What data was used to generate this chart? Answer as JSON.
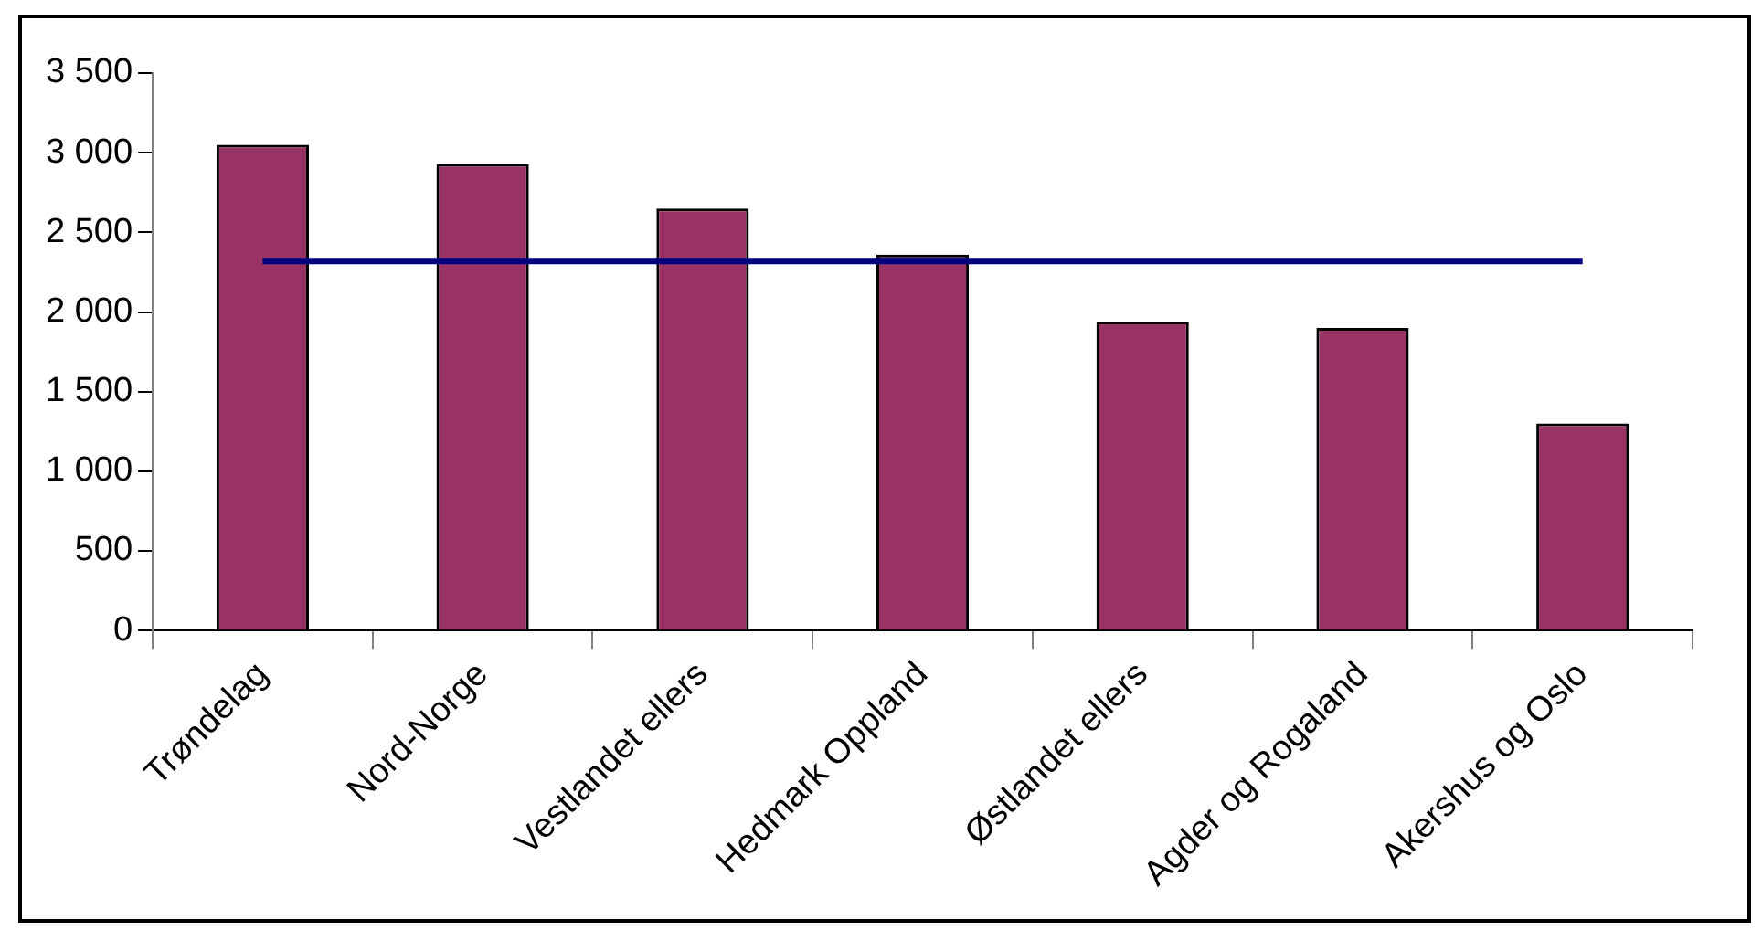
{
  "chart_data": {
    "type": "bar",
    "categories": [
      "Trøndelag",
      "Nord-Norge",
      "Vestlandet ellers",
      "Hedmark Oppland",
      "Østlandet ellers",
      "Agder og Rogaland",
      "Akershus og Oslo"
    ],
    "series": [
      {
        "color": "#993366",
        "values": [
          3050,
          2930,
          2650,
          2360,
          1940,
          1900,
          1300
        ]
      },
      {
        "type": "line",
        "color": "#000080",
        "values": [
          2320,
          2320,
          2320,
          2320,
          2320,
          2320,
          2320
        ]
      }
    ],
    "ylim": [
      0,
      3500
    ],
    "yticks": [
      0,
      500,
      {
        "value": 1000,
        "label": "1 000"
      },
      {
        "value": 1500,
        "label": "1 500"
      },
      {
        "value": 2000,
        "label": "2 000"
      },
      {
        "value": 2500,
        "label": "2 500"
      },
      {
        "value": 3000,
        "label": "3 000"
      },
      {
        "value": 3500,
        "label": "3 500"
      }
    ],
    "grid": false,
    "legend": false,
    "marker": "none",
    "line_style": "solid"
  }
}
